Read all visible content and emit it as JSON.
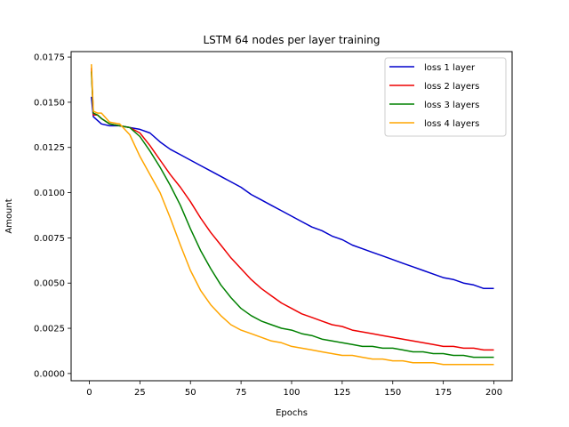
{
  "chart_data": {
    "type": "line",
    "title": "LSTM 64 nodes per layer training",
    "xlabel": "Epochs",
    "ylabel": "Amount",
    "xlim": [
      -9,
      209
    ],
    "ylim": [
      -0.0004,
      0.0178
    ],
    "xticks": [
      0,
      25,
      50,
      75,
      100,
      125,
      150,
      175,
      200
    ],
    "xtick_labels": [
      "0",
      "25",
      "50",
      "75",
      "100",
      "125",
      "150",
      "175",
      "200"
    ],
    "yticks": [
      0.0,
      0.0025,
      0.005,
      0.0075,
      0.01,
      0.0125,
      0.015,
      0.0175
    ],
    "ytick_labels": [
      "0.0000",
      "0.0025",
      "0.0050",
      "0.0075",
      "0.0100",
      "0.0125",
      "0.0150",
      "0.0175"
    ],
    "grid": false,
    "legend_position": "top-right",
    "series": [
      {
        "name": "loss 1 layer",
        "color": "#0000cc",
        "points": [
          [
            1,
            0.0153
          ],
          [
            2,
            0.0142
          ],
          [
            4,
            0.014
          ],
          [
            6,
            0.0138
          ],
          [
            10,
            0.0137
          ],
          [
            15,
            0.0137
          ],
          [
            20,
            0.0136
          ],
          [
            25,
            0.0135
          ],
          [
            30,
            0.0133
          ],
          [
            35,
            0.0128
          ],
          [
            40,
            0.0124
          ],
          [
            45,
            0.0121
          ],
          [
            50,
            0.0118
          ],
          [
            55,
            0.0115
          ],
          [
            60,
            0.0112
          ],
          [
            65,
            0.0109
          ],
          [
            70,
            0.0106
          ],
          [
            75,
            0.0103
          ],
          [
            80,
            0.0099
          ],
          [
            85,
            0.0096
          ],
          [
            90,
            0.0093
          ],
          [
            95,
            0.009
          ],
          [
            100,
            0.0087
          ],
          [
            105,
            0.0084
          ],
          [
            110,
            0.0081
          ],
          [
            115,
            0.0079
          ],
          [
            120,
            0.0076
          ],
          [
            125,
            0.0074
          ],
          [
            130,
            0.0071
          ],
          [
            135,
            0.0069
          ],
          [
            140,
            0.0067
          ],
          [
            145,
            0.0065
          ],
          [
            150,
            0.0063
          ],
          [
            155,
            0.0061
          ],
          [
            160,
            0.0059
          ],
          [
            165,
            0.0057
          ],
          [
            170,
            0.0055
          ],
          [
            175,
            0.0053
          ],
          [
            180,
            0.0052
          ],
          [
            185,
            0.005
          ],
          [
            190,
            0.0049
          ],
          [
            195,
            0.0047
          ],
          [
            200,
            0.0047
          ]
        ]
      },
      {
        "name": "loss 2 layers",
        "color": "#ee0000",
        "points": [
          [
            1,
            0.0169
          ],
          [
            2,
            0.0143
          ],
          [
            4,
            0.0143
          ],
          [
            6,
            0.0141
          ],
          [
            10,
            0.0138
          ],
          [
            15,
            0.0137
          ],
          [
            20,
            0.0136
          ],
          [
            25,
            0.0133
          ],
          [
            30,
            0.0126
          ],
          [
            35,
            0.0118
          ],
          [
            40,
            0.011
          ],
          [
            45,
            0.0103
          ],
          [
            50,
            0.0095
          ],
          [
            55,
            0.0086
          ],
          [
            60,
            0.0078
          ],
          [
            65,
            0.0071
          ],
          [
            70,
            0.0064
          ],
          [
            75,
            0.0058
          ],
          [
            80,
            0.0052
          ],
          [
            85,
            0.0047
          ],
          [
            90,
            0.0043
          ],
          [
            95,
            0.0039
          ],
          [
            100,
            0.0036
          ],
          [
            105,
            0.0033
          ],
          [
            110,
            0.0031
          ],
          [
            115,
            0.0029
          ],
          [
            120,
            0.0027
          ],
          [
            125,
            0.0026
          ],
          [
            130,
            0.0024
          ],
          [
            135,
            0.0023
          ],
          [
            140,
            0.0022
          ],
          [
            145,
            0.0021
          ],
          [
            150,
            0.002
          ],
          [
            155,
            0.0019
          ],
          [
            160,
            0.0018
          ],
          [
            165,
            0.0017
          ],
          [
            170,
            0.0016
          ],
          [
            175,
            0.0015
          ],
          [
            180,
            0.0015
          ],
          [
            185,
            0.0014
          ],
          [
            190,
            0.0014
          ],
          [
            195,
            0.0013
          ],
          [
            200,
            0.0013
          ]
        ]
      },
      {
        "name": "loss 3 layers",
        "color": "#008000",
        "points": [
          [
            1,
            0.0167
          ],
          [
            2,
            0.0144
          ],
          [
            4,
            0.0143
          ],
          [
            6,
            0.0141
          ],
          [
            10,
            0.0138
          ],
          [
            15,
            0.0137
          ],
          [
            20,
            0.0136
          ],
          [
            25,
            0.0131
          ],
          [
            30,
            0.0123
          ],
          [
            35,
            0.0114
          ],
          [
            40,
            0.0104
          ],
          [
            45,
            0.0093
          ],
          [
            50,
            0.008
          ],
          [
            55,
            0.0068
          ],
          [
            60,
            0.0058
          ],
          [
            65,
            0.0049
          ],
          [
            70,
            0.0042
          ],
          [
            75,
            0.0036
          ],
          [
            80,
            0.0032
          ],
          [
            85,
            0.0029
          ],
          [
            90,
            0.0027
          ],
          [
            95,
            0.0025
          ],
          [
            100,
            0.0024
          ],
          [
            105,
            0.0022
          ],
          [
            110,
            0.0021
          ],
          [
            115,
            0.0019
          ],
          [
            120,
            0.0018
          ],
          [
            125,
            0.0017
          ],
          [
            130,
            0.0016
          ],
          [
            135,
            0.0015
          ],
          [
            140,
            0.0015
          ],
          [
            145,
            0.0014
          ],
          [
            150,
            0.0014
          ],
          [
            155,
            0.0013
          ],
          [
            160,
            0.0012
          ],
          [
            165,
            0.0012
          ],
          [
            170,
            0.0011
          ],
          [
            175,
            0.0011
          ],
          [
            180,
            0.001
          ],
          [
            185,
            0.001
          ],
          [
            190,
            0.0009
          ],
          [
            195,
            0.0009
          ],
          [
            200,
            0.0009
          ]
        ]
      },
      {
        "name": "loss 4 layers",
        "color": "#ffa500",
        "points": [
          [
            1,
            0.0171
          ],
          [
            2,
            0.0145
          ],
          [
            4,
            0.0144
          ],
          [
            6,
            0.0144
          ],
          [
            10,
            0.0139
          ],
          [
            15,
            0.0138
          ],
          [
            20,
            0.0132
          ],
          [
            25,
            0.012
          ],
          [
            30,
            0.011
          ],
          [
            35,
            0.01
          ],
          [
            40,
            0.0086
          ],
          [
            45,
            0.0071
          ],
          [
            50,
            0.0057
          ],
          [
            55,
            0.0046
          ],
          [
            60,
            0.0038
          ],
          [
            65,
            0.0032
          ],
          [
            70,
            0.0027
          ],
          [
            75,
            0.0024
          ],
          [
            80,
            0.0022
          ],
          [
            85,
            0.002
          ],
          [
            90,
            0.0018
          ],
          [
            95,
            0.0017
          ],
          [
            100,
            0.0015
          ],
          [
            105,
            0.0014
          ],
          [
            110,
            0.0013
          ],
          [
            115,
            0.0012
          ],
          [
            120,
            0.0011
          ],
          [
            125,
            0.001
          ],
          [
            130,
            0.001
          ],
          [
            135,
            0.0009
          ],
          [
            140,
            0.0008
          ],
          [
            145,
            0.0008
          ],
          [
            150,
            0.0007
          ],
          [
            155,
            0.0007
          ],
          [
            160,
            0.0006
          ],
          [
            165,
            0.0006
          ],
          [
            170,
            0.0006
          ],
          [
            175,
            0.0005
          ],
          [
            180,
            0.0005
          ],
          [
            185,
            0.0005
          ],
          [
            190,
            0.0005
          ],
          [
            195,
            0.0005
          ],
          [
            200,
            0.0005
          ]
        ]
      }
    ]
  }
}
